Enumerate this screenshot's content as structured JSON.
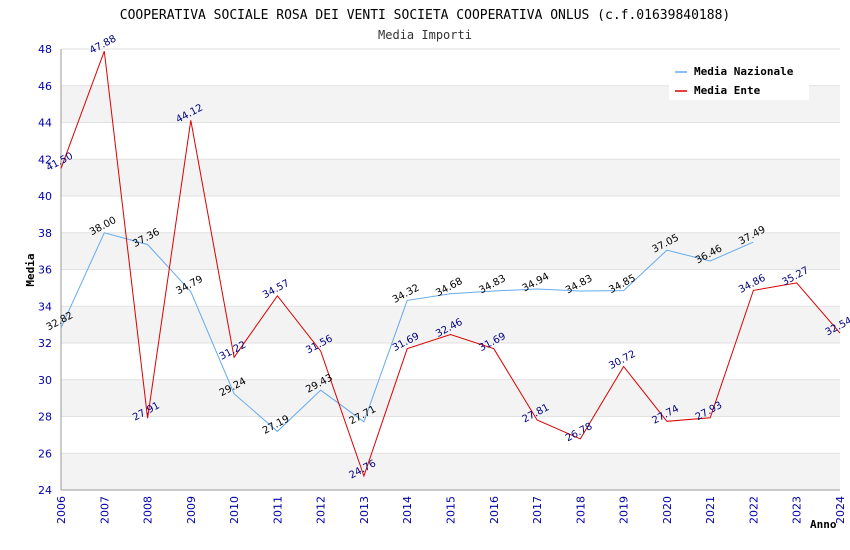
{
  "chart_data": {
    "type": "line",
    "title": "COOPERATIVA SOCIALE ROSA DEI VENTI SOCIETA COOPERATIVA ONLUS (c.f.01639840188)",
    "subtitle": "Media Importi",
    "xlabel": "Anno",
    "ylabel": "Media",
    "ylim": [
      24,
      48
    ],
    "yticks": [
      24,
      26,
      28,
      30,
      32,
      34,
      36,
      38,
      40,
      42,
      44,
      46,
      48
    ],
    "categories": [
      "2006",
      "2007",
      "2008",
      "2009",
      "2010",
      "2011",
      "2012",
      "2013",
      "2014",
      "2015",
      "2016",
      "2017",
      "2018",
      "2019",
      "2020",
      "2021",
      "2022",
      "2023",
      "2024"
    ],
    "series": [
      {
        "name": "Media Nazionale",
        "color": "#66aaee",
        "values": [
          32.82,
          38.0,
          37.36,
          34.79,
          29.24,
          27.19,
          29.43,
          27.71,
          34.32,
          34.68,
          34.83,
          34.94,
          34.83,
          34.85,
          37.05,
          36.46,
          37.49,
          null,
          null
        ],
        "labels": [
          "32.82",
          "38.00",
          "37.36",
          "34.79",
          "29.24",
          "27.19",
          "29.43",
          "27.71",
          "34.32",
          "34.68",
          "34.83",
          "34.94",
          "34.83",
          "34.85",
          "37.05",
          "36.46",
          "37.49",
          null,
          null
        ]
      },
      {
        "name": "Media Ente",
        "color": "#dd0000",
        "values": [
          41.5,
          47.88,
          27.91,
          44.12,
          31.22,
          34.57,
          31.56,
          24.76,
          31.69,
          32.46,
          31.69,
          27.81,
          26.78,
          30.72,
          27.74,
          27.93,
          34.86,
          35.27,
          32.54
        ],
        "labels": [
          "41.50",
          "47.88",
          "27.91",
          "44.12",
          "31.22",
          "34.57",
          "31.56",
          "24.76",
          "31.69",
          "32.46",
          "31.69",
          "27.81",
          "26.78",
          "30.72",
          "27.74",
          "27.93",
          "34.86",
          "35.27",
          "32.54"
        ]
      }
    ],
    "legend": "top-right",
    "grid": true
  }
}
